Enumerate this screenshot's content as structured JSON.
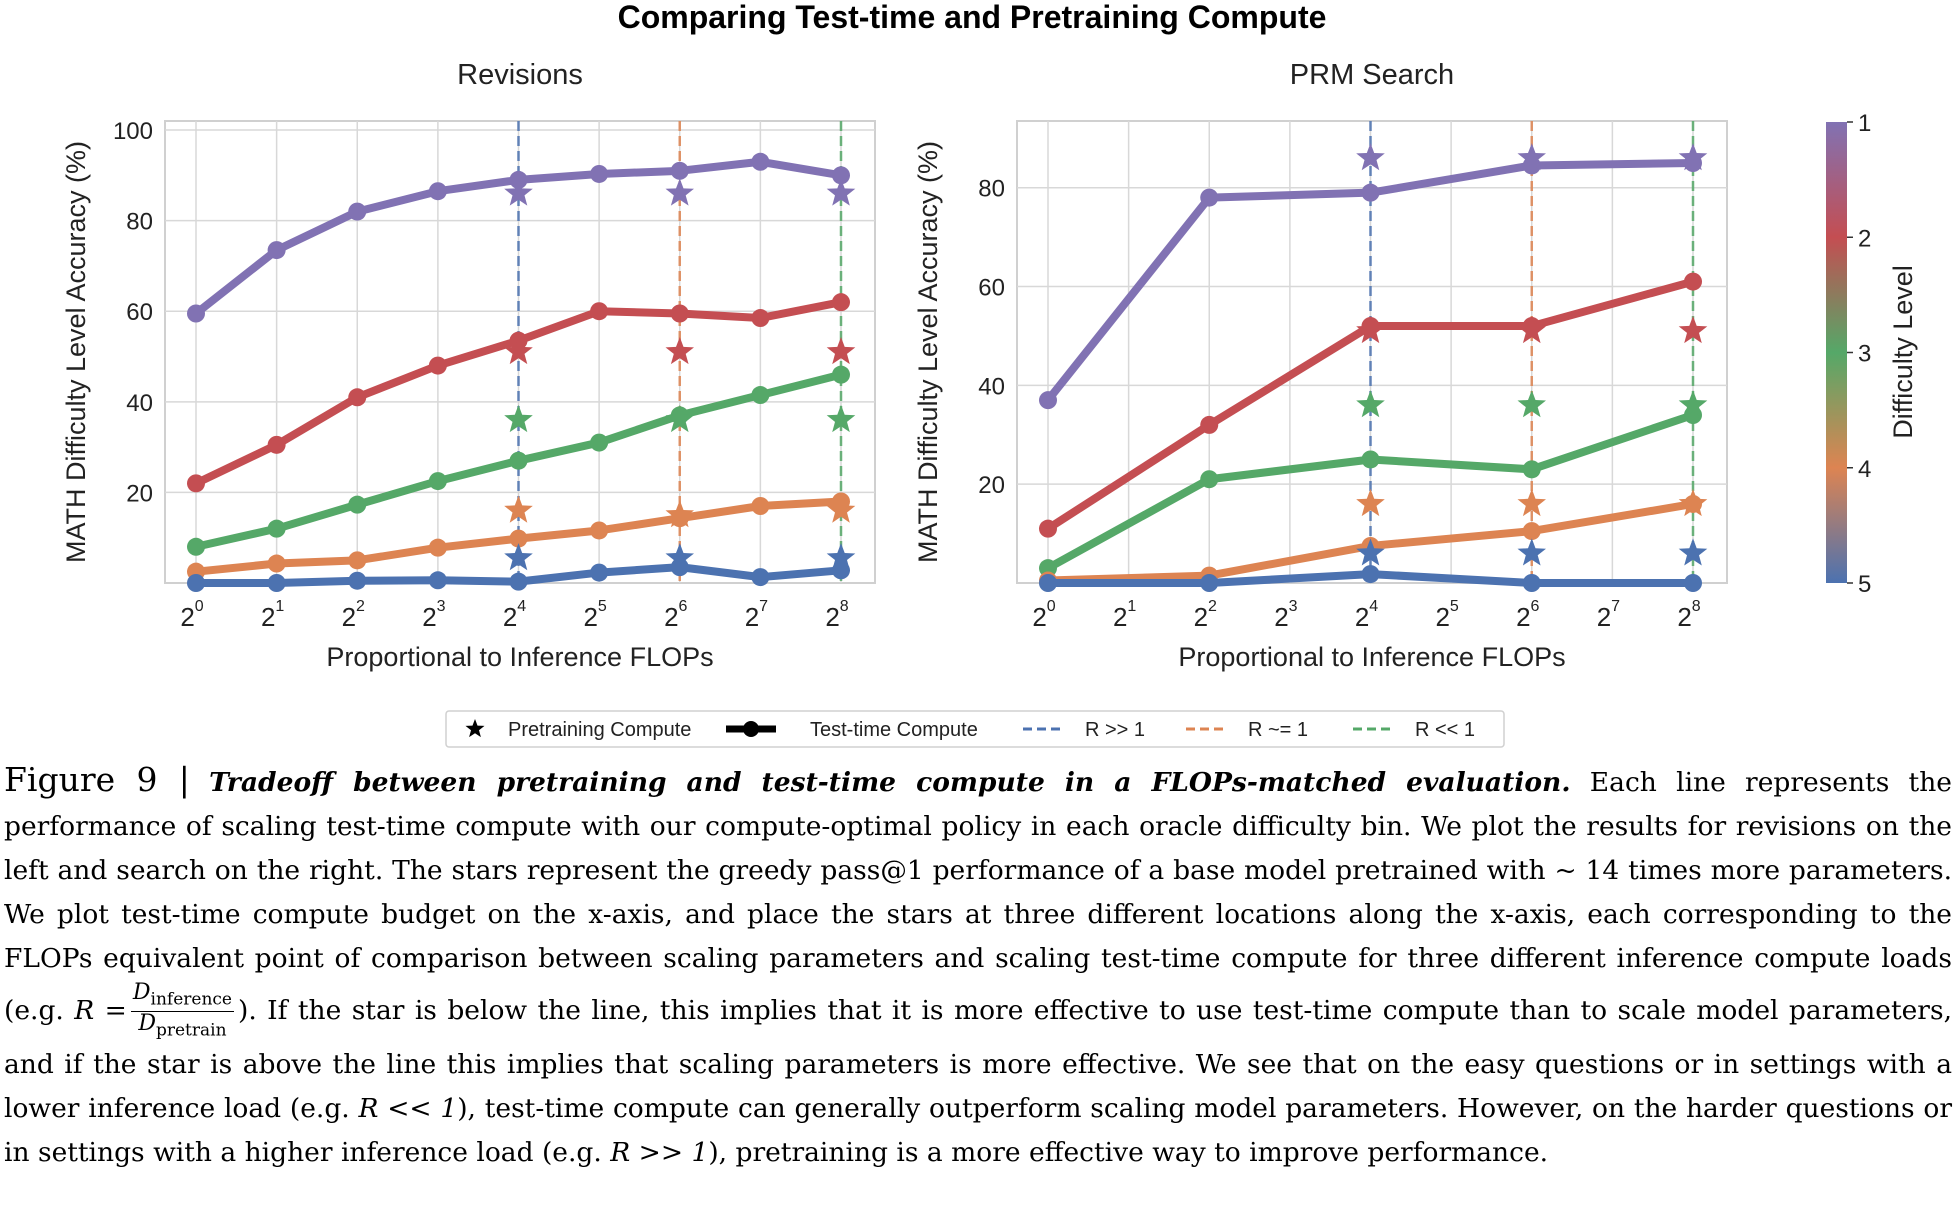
{
  "chart_data": {
    "title": "Comparing Test-time and Pretraining Compute",
    "colors": {
      "1": "#8172b3",
      "2": "#c44e52",
      "3": "#55a868",
      "4": "#dd8452",
      "5": "#4c72b0"
    },
    "legend": {
      "placement": "bottom-center",
      "items": [
        {
          "label": "Pretraining Compute",
          "marker": "star"
        },
        {
          "label": "Test-time Compute",
          "marker": "line-dot"
        },
        {
          "label": "R >> 1",
          "marker": "dashed",
          "color": "#4c72b0"
        },
        {
          "label": "R ~= 1",
          "marker": "dashed",
          "color": "#dd8452"
        },
        {
          "label": "R << 1",
          "marker": "dashed",
          "color": "#55a868"
        }
      ]
    },
    "colorbar": {
      "label": "Difficulty Level",
      "ticks": [
        "1",
        "2",
        "3",
        "4",
        "5"
      ]
    },
    "subplots": [
      {
        "type": "line",
        "title": "Revisions",
        "xlabel": "Proportional to Inference FLOPs",
        "ylabel": "MATH Difficulty Level Accuracy (%)",
        "x_scale": "log2",
        "x_exponents": [
          0,
          1,
          2,
          3,
          4,
          5,
          6,
          7,
          8
        ],
        "xtick_exponents": [
          0,
          1,
          2,
          3,
          4,
          5,
          6,
          7,
          8
        ],
        "yticks": [
          20,
          40,
          60,
          80,
          100
        ],
        "ylim": [
          0,
          102
        ],
        "grid": true,
        "series": [
          {
            "level": 1,
            "values": [
              59.5,
              73.5,
              82,
              86.5,
              89,
              90.3,
              91,
              93,
              90
            ]
          },
          {
            "level": 2,
            "values": [
              22,
              30.5,
              41,
              48,
              53.5,
              60,
              59.5,
              58.5,
              62
            ]
          },
          {
            "level": 3,
            "values": [
              8,
              12,
              17.3,
              22.5,
              27,
              31,
              37,
              41.5,
              46
            ]
          },
          {
            "level": 4,
            "values": [
              2.5,
              4.3,
              5,
              7.8,
              9.8,
              11.6,
              14.3,
              17,
              18
            ]
          },
          {
            "level": 5,
            "values": [
              0,
              0,
              0.5,
              0.6,
              0.3,
              2.3,
              3.5,
              1.3,
              2.8
            ]
          }
        ],
        "ratio_lines": [
          {
            "label": "R >> 1",
            "x_exponent": 4
          },
          {
            "label": "R ~= 1",
            "x_exponent": 6
          },
          {
            "label": "R << 1",
            "x_exponent": 8
          }
        ],
        "stars": [
          {
            "level": 1,
            "x_exponents": [
              4,
              6,
              8
            ],
            "values": [
              86,
              86,
              86
            ]
          },
          {
            "level": 2,
            "x_exponents": [
              4,
              6,
              8
            ],
            "values": [
              51,
              51,
              51
            ]
          },
          {
            "level": 3,
            "x_exponents": [
              4,
              6,
              8
            ],
            "values": [
              36,
              36,
              36
            ]
          },
          {
            "level": 4,
            "x_exponents": [
              4,
              6,
              8
            ],
            "values": [
              16,
              15,
              16
            ]
          },
          {
            "level": 5,
            "x_exponents": [
              4,
              6,
              8
            ],
            "values": [
              5.5,
              5.5,
              5.5
            ]
          }
        ]
      },
      {
        "type": "line",
        "title": "PRM Search",
        "xlabel": "Proportional to Inference FLOPs",
        "ylabel": "MATH Difficulty Level Accuracy (%)",
        "x_scale": "log2",
        "x_exponents": [
          0,
          2,
          4,
          6,
          8
        ],
        "xtick_exponents": [
          0,
          1,
          2,
          3,
          4,
          5,
          6,
          7,
          8
        ],
        "yticks": [
          20,
          40,
          60,
          80
        ],
        "ylim": [
          0,
          93.5
        ],
        "grid": true,
        "series": [
          {
            "level": 1,
            "values": [
              37,
              78,
              79,
              84.5,
              85
            ]
          },
          {
            "level": 2,
            "values": [
              11,
              32,
              52,
              52,
              61
            ]
          },
          {
            "level": 3,
            "values": [
              3,
              21,
              25,
              23,
              34
            ]
          },
          {
            "level": 4,
            "values": [
              0.5,
              1.5,
              7.5,
              10.5,
              16
            ]
          },
          {
            "level": 5,
            "values": [
              0,
              0,
              1.8,
              0,
              0
            ]
          }
        ],
        "ratio_lines": [
          {
            "label": "R >> 1",
            "x_exponent": 4
          },
          {
            "label": "R ~= 1",
            "x_exponent": 6
          },
          {
            "label": "R << 1",
            "x_exponent": 8
          }
        ],
        "stars": [
          {
            "level": 1,
            "x_exponents": [
              4,
              6,
              8
            ],
            "values": [
              86,
              86,
              86
            ]
          },
          {
            "level": 2,
            "x_exponents": [
              4,
              6,
              8
            ],
            "values": [
              51,
              51,
              51
            ]
          },
          {
            "level": 3,
            "x_exponents": [
              4,
              6,
              8
            ],
            "values": [
              36,
              36,
              36
            ]
          },
          {
            "level": 4,
            "x_exponents": [
              4,
              6,
              8
            ],
            "values": [
              16,
              16,
              16
            ]
          },
          {
            "level": 5,
            "x_exponents": [
              4,
              6,
              8
            ],
            "values": [
              6,
              6,
              6
            ]
          }
        ]
      }
    ]
  },
  "caption": {
    "figure_label": "Figure 9 |",
    "title": "Tradeoff between pretraining and test-time compute in a FLOPs-matched evaluation.",
    "part1": "Each line represents the performance of scaling test-time compute with our compute-optimal policy in each oracle difficulty bin. We plot the results for revisions on the left and search on the right. The stars represent the greedy pass@1 performance of a base model pretrained with ~ 14 times more parameters. We plot test-time compute budget on the x-axis, and place the stars at three different locations along the x-axis, each corresponding to the FLOPs equivalent point of comparison between scaling parameters and scaling test-time compute for three different inference compute loads (e.g.",
    "formula_lhs": "R =",
    "formula_num": "D",
    "formula_num_sub": "inference",
    "formula_den": "D",
    "formula_den_sub": "pretrain",
    "part2": "). If the star is below the line, this implies that it is more effective to use test-time compute than to scale model parameters, and if the star is above the line this implies that scaling parameters is more effective. We see that on the easy questions or in settings with a lower inference load (e.g.",
    "r_low": "R << 1",
    "part3": "), test-time compute can generally outperform scaling model parameters. However, on the harder questions or in settings with a higher inference load (e.g.",
    "r_high": "R >> 1",
    "part4": "), pretraining is a more effective way to improve performance."
  }
}
